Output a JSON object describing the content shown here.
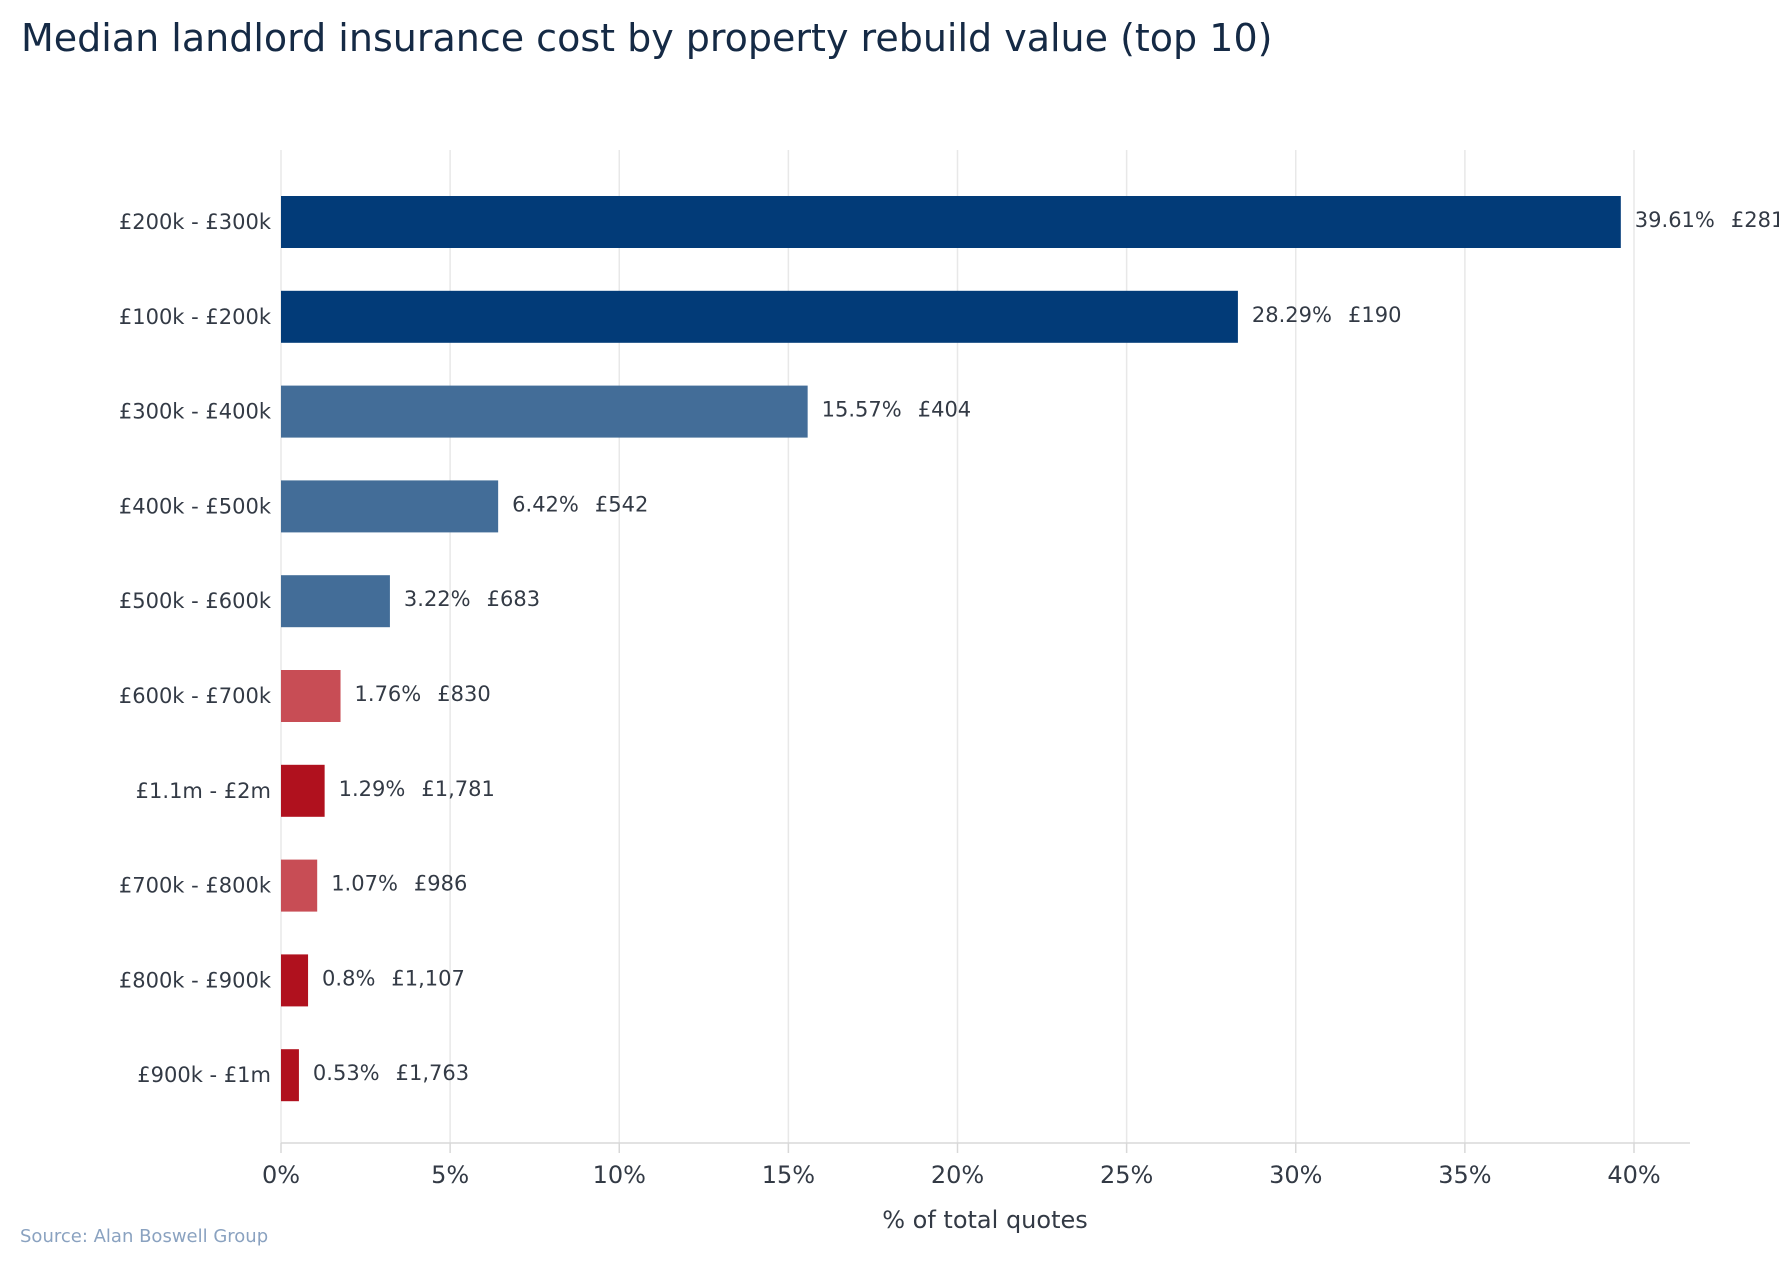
{
  "colors": {
    "navy": "#023b78",
    "steel": "#436d98",
    "rose": "#c84d55",
    "red": "#b0111e",
    "title": "#152a45",
    "source": "#8aa2c0"
  },
  "chart_data": {
    "type": "bar",
    "orientation": "horizontal",
    "title": "Median landlord insurance cost by property rebuild value (top 10)",
    "xlabel": "% of total quotes",
    "ylabel": "",
    "xlim": [
      0,
      40
    ],
    "grid": true,
    "x_ticks": [
      "0%",
      "5%",
      "10%",
      "15%",
      "20%",
      "25%",
      "30%",
      "35%",
      "40%"
    ],
    "categories": [
      "£200k - £300k",
      "£100k - £200k",
      "£300k - £400k",
      "£400k - £500k",
      "£500k - £600k",
      "£600k - £700k",
      "£1.1m - £2m",
      "£700k - £800k",
      "£800k - £900k",
      "£900k - £1m"
    ],
    "values": [
      39.61,
      28.29,
      15.57,
      6.42,
      3.22,
      1.76,
      1.29,
      1.07,
      0.8,
      0.53
    ],
    "value_labels": [
      "39.61%",
      "28.29%",
      "15.57%",
      "6.42%",
      "3.22%",
      "1.76%",
      "1.29%",
      "1.07%",
      "0.8%",
      "0.53%"
    ],
    "median_costs": [
      "£281",
      "£190",
      "£404",
      "£542",
      "£683",
      "£830",
      "£1,781",
      "£986",
      "£1,107",
      "£1,763"
    ],
    "bar_colors": [
      "#023b78",
      "#023b78",
      "#436d98",
      "#436d98",
      "#436d98",
      "#c84d55",
      "#b0111e",
      "#c84d55",
      "#b0111e",
      "#b0111e"
    ]
  },
  "source": "Source: Alan Boswell Group"
}
